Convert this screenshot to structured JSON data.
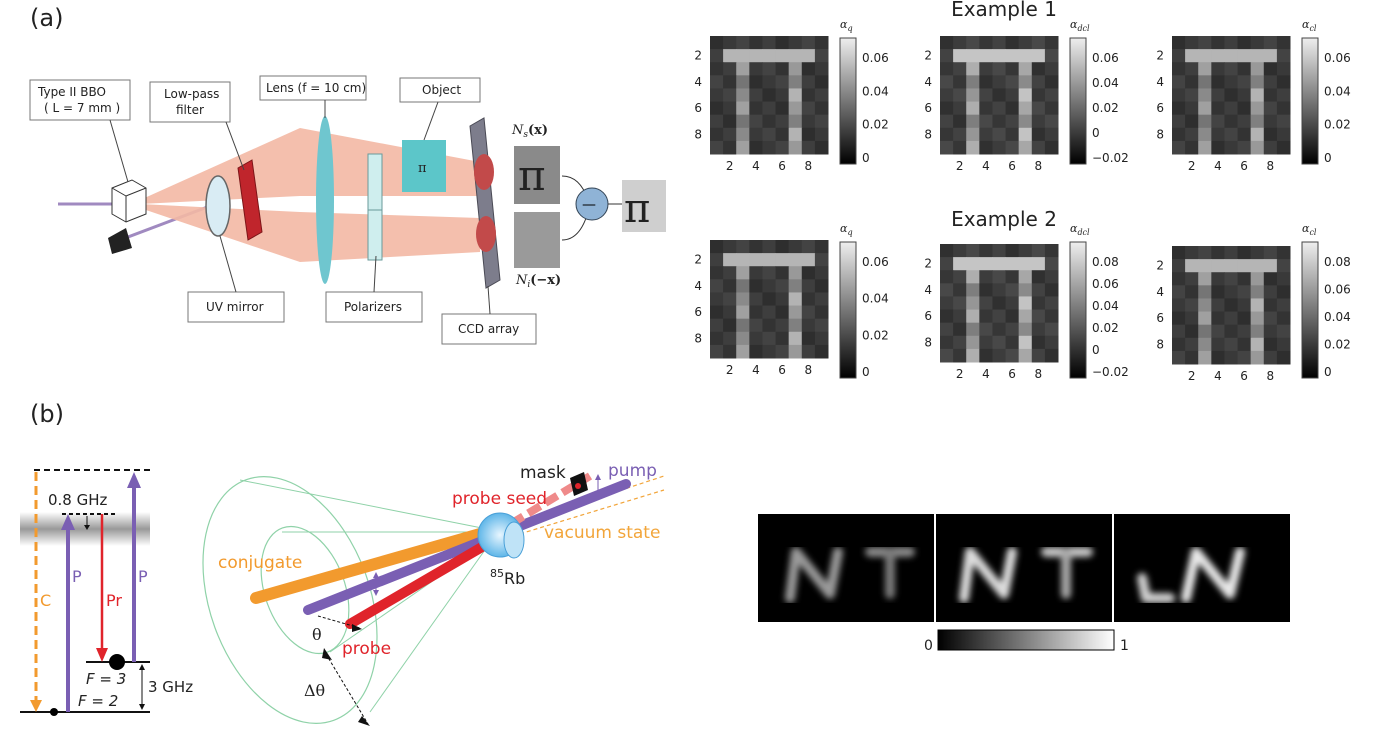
{
  "panel_a": {
    "label": "(a)",
    "setup_labels": {
      "bbo_line1": "Type II BBO",
      "bbo_line2": "( L = 7 mm )",
      "lowpass_line1": "Low-pass",
      "lowpass_line2": "filter",
      "lens": "Lens (f = 10 cm)",
      "object": "Object",
      "object_symbol": "π",
      "uv_mirror": "UV mirror",
      "polarizers": "Polarizers",
      "ccd_array": "CCD array",
      "ns": "N",
      "ns_sub": "s",
      "ns_arg": "(x)",
      "ni": "N",
      "ni_sub": "i",
      "ni_arg": "(−x)",
      "minus": "—"
    },
    "examples": [
      {
        "title": "Example 1",
        "maps": [
          {
            "cbar_label": "α",
            "cbar_sub": "q",
            "ticks": [
              "0.06",
              "0.04",
              "0.02",
              "0"
            ]
          },
          {
            "cbar_label": "α",
            "cbar_sub": "dcl",
            "ticks": [
              "0.06",
              "0.04",
              "0.02",
              "0",
              "−0.02"
            ]
          },
          {
            "cbar_label": "α",
            "cbar_sub": "cl",
            "ticks": [
              "0.06",
              "0.04",
              "0.02",
              "0"
            ]
          }
        ]
      },
      {
        "title": "Example 2",
        "maps": [
          {
            "cbar_label": "α",
            "cbar_sub": "q",
            "ticks": [
              "0.06",
              "0.04",
              "0.02",
              "0"
            ]
          },
          {
            "cbar_label": "α",
            "cbar_sub": "dcl",
            "ticks": [
              "0.08",
              "0.06",
              "0.04",
              "0.02",
              "0",
              "−0.02"
            ]
          },
          {
            "cbar_label": "α",
            "cbar_sub": "cl",
            "ticks": [
              "0.08",
              "0.06",
              "0.04",
              "0.02",
              "0"
            ]
          }
        ]
      }
    ],
    "axis_ticks": [
      "2",
      "4",
      "6",
      "8"
    ]
  },
  "panel_b": {
    "label": "(b)",
    "levels": {
      "ghz08": "0.8 GHz",
      "ghz3": "3 GHz",
      "f3": "F = 3",
      "f2": "F = 2",
      "c": "C",
      "p1": "P",
      "pr": "Pr",
      "p2": "P"
    },
    "beams": {
      "mask": "mask",
      "pump": "pump",
      "probe_seed": "probe seed",
      "vacuum_state": "vacuum state",
      "conjugate": "conjugate",
      "rb_sup": "85",
      "rb": "Rb",
      "theta": "θ",
      "probe": "probe",
      "dtheta": "Δθ"
    },
    "colorbar": {
      "min": "0",
      "max": "1"
    }
  },
  "colors": {
    "beam": "#f0a890",
    "lens": "#6fc6cf",
    "object": "#5cc6c9",
    "filter": "#c0252c",
    "pump": "#7a5fb3",
    "probe": "#e0242b",
    "conjugate": "#f29a2e",
    "vacuum": "#f2a53a",
    "cone": "#8fd2a8"
  }
}
